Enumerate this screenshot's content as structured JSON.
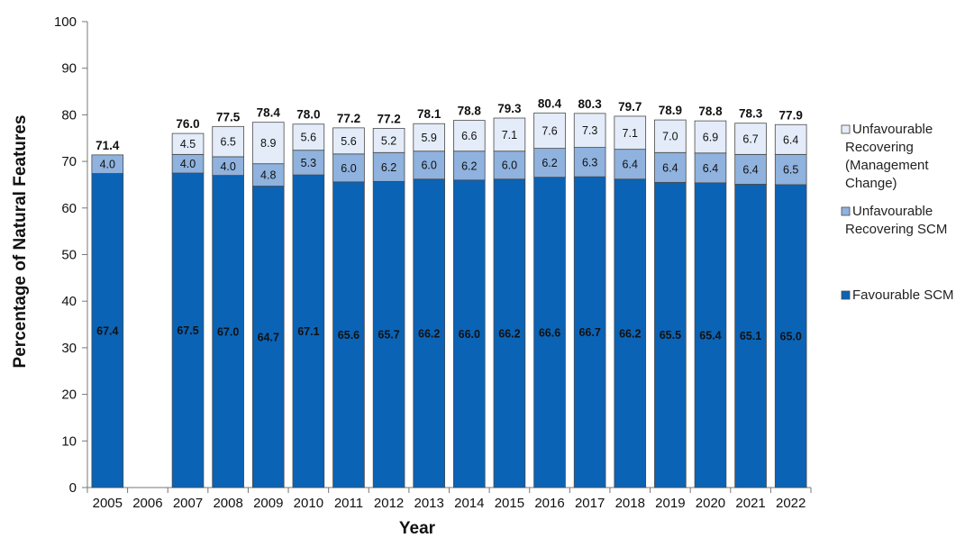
{
  "chart_data": {
    "type": "bar",
    "stacked": true,
    "xlabel": "Year",
    "ylabel": "Percentage of Natural Features",
    "ylim": [
      0,
      100
    ],
    "yticks": [
      0,
      10,
      20,
      30,
      40,
      50,
      60,
      70,
      80,
      90,
      100
    ],
    "grid": false,
    "legend_position": "right",
    "categories": [
      "2005",
      "2006",
      "2007",
      "2008",
      "2009",
      "2010",
      "2011",
      "2012",
      "2013",
      "2014",
      "2015",
      "2016",
      "2017",
      "2018",
      "2019",
      "2020",
      "2021",
      "2022"
    ],
    "series": [
      {
        "name": "Favourable SCM",
        "color": "#0b63b5",
        "values": [
          67.4,
          null,
          67.5,
          67.0,
          64.7,
          67.1,
          65.6,
          65.7,
          66.2,
          66.0,
          66.2,
          66.6,
          66.7,
          66.2,
          65.5,
          65.4,
          65.1,
          65.0
        ]
      },
      {
        "name": "Unfavourable Recovering SCM",
        "color": "#8fb2de",
        "values": [
          4.0,
          null,
          4.0,
          4.0,
          4.8,
          5.3,
          6.0,
          6.2,
          6.0,
          6.2,
          6.0,
          6.2,
          6.3,
          6.4,
          6.4,
          6.4,
          6.4,
          6.5
        ]
      },
      {
        "name": "Unfavourable Recovering (Management Change)",
        "legend_lines": [
          "Unfavourable",
          "Recovering",
          "(Management",
          "Change)"
        ],
        "color": "#e3ecf8",
        "values": [
          null,
          null,
          4.5,
          6.5,
          8.9,
          5.6,
          5.6,
          5.2,
          5.9,
          6.6,
          7.1,
          7.6,
          7.3,
          7.1,
          7.0,
          6.9,
          6.7,
          6.4
        ]
      }
    ],
    "totals": [
      71.4,
      null,
      76.0,
      77.5,
      78.4,
      78.0,
      77.2,
      77.2,
      78.1,
      78.8,
      79.3,
      80.4,
      80.3,
      79.7,
      78.9,
      78.8,
      78.3,
      77.9
    ],
    "legend": [
      {
        "lines": [
          "Unfavourable",
          "Recovering",
          "(Management",
          "Change)"
        ],
        "color": "#e3ecf8"
      },
      {
        "lines": [
          "Unfavourable",
          "Recovering SCM"
        ],
        "color": "#8fb2de"
      },
      {
        "lines": [
          "Favourable SCM"
        ],
        "color": "#0b63b5"
      }
    ]
  }
}
